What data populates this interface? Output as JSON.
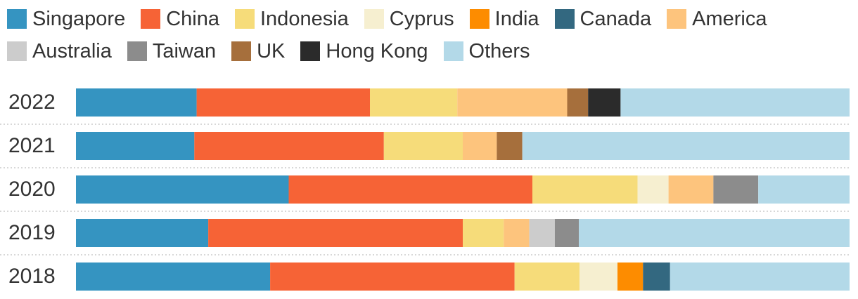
{
  "chart_data": {
    "type": "stacked-bar-horizontal",
    "categories": [
      "2022",
      "2021",
      "2020",
      "2019",
      "2018"
    ],
    "xlim": [
      0,
      100
    ],
    "series": [
      {
        "name": "Singapore",
        "color": "#3594c1",
        "values": [
          15.6,
          15.3,
          27.5,
          17.1,
          25.1
        ]
      },
      {
        "name": "China",
        "color": "#f66336",
        "values": [
          22.4,
          24.5,
          31.5,
          32.9,
          31.6
        ]
      },
      {
        "name": "Indonesia",
        "color": "#f6dc7a",
        "values": [
          11.3,
          10.2,
          13.6,
          5.3,
          8.4
        ]
      },
      {
        "name": "Cyprus",
        "color": "#f6efd0",
        "values": [
          null,
          null,
          4.0,
          null,
          4.9
        ]
      },
      {
        "name": "India",
        "color": "#fd8c00",
        "values": [
          null,
          null,
          null,
          null,
          3.3
        ]
      },
      {
        "name": "Canada",
        "color": "#336880",
        "values": [
          null,
          null,
          null,
          null,
          3.5
        ]
      },
      {
        "name": "America",
        "color": "#fdc47d",
        "values": [
          14.2,
          4.4,
          5.8,
          3.3,
          null
        ]
      },
      {
        "name": "Australia",
        "color": "#cccccc",
        "values": [
          null,
          null,
          null,
          3.3,
          null
        ]
      },
      {
        "name": "Taiwan",
        "color": "#8c8c8c",
        "values": [
          null,
          null,
          5.8,
          3.1,
          null
        ]
      },
      {
        "name": "UK",
        "color": "#a66f3c",
        "values": [
          2.7,
          3.3,
          null,
          null,
          null
        ]
      },
      {
        "name": "Hong Kong",
        "color": "#2b2b2b",
        "values": [
          4.2,
          null,
          null,
          null,
          null
        ]
      },
      {
        "name": "Others",
        "color": "#b3d9e8",
        "values": [
          29.6,
          42.3,
          11.8,
          35.0,
          23.2
        ]
      }
    ]
  }
}
